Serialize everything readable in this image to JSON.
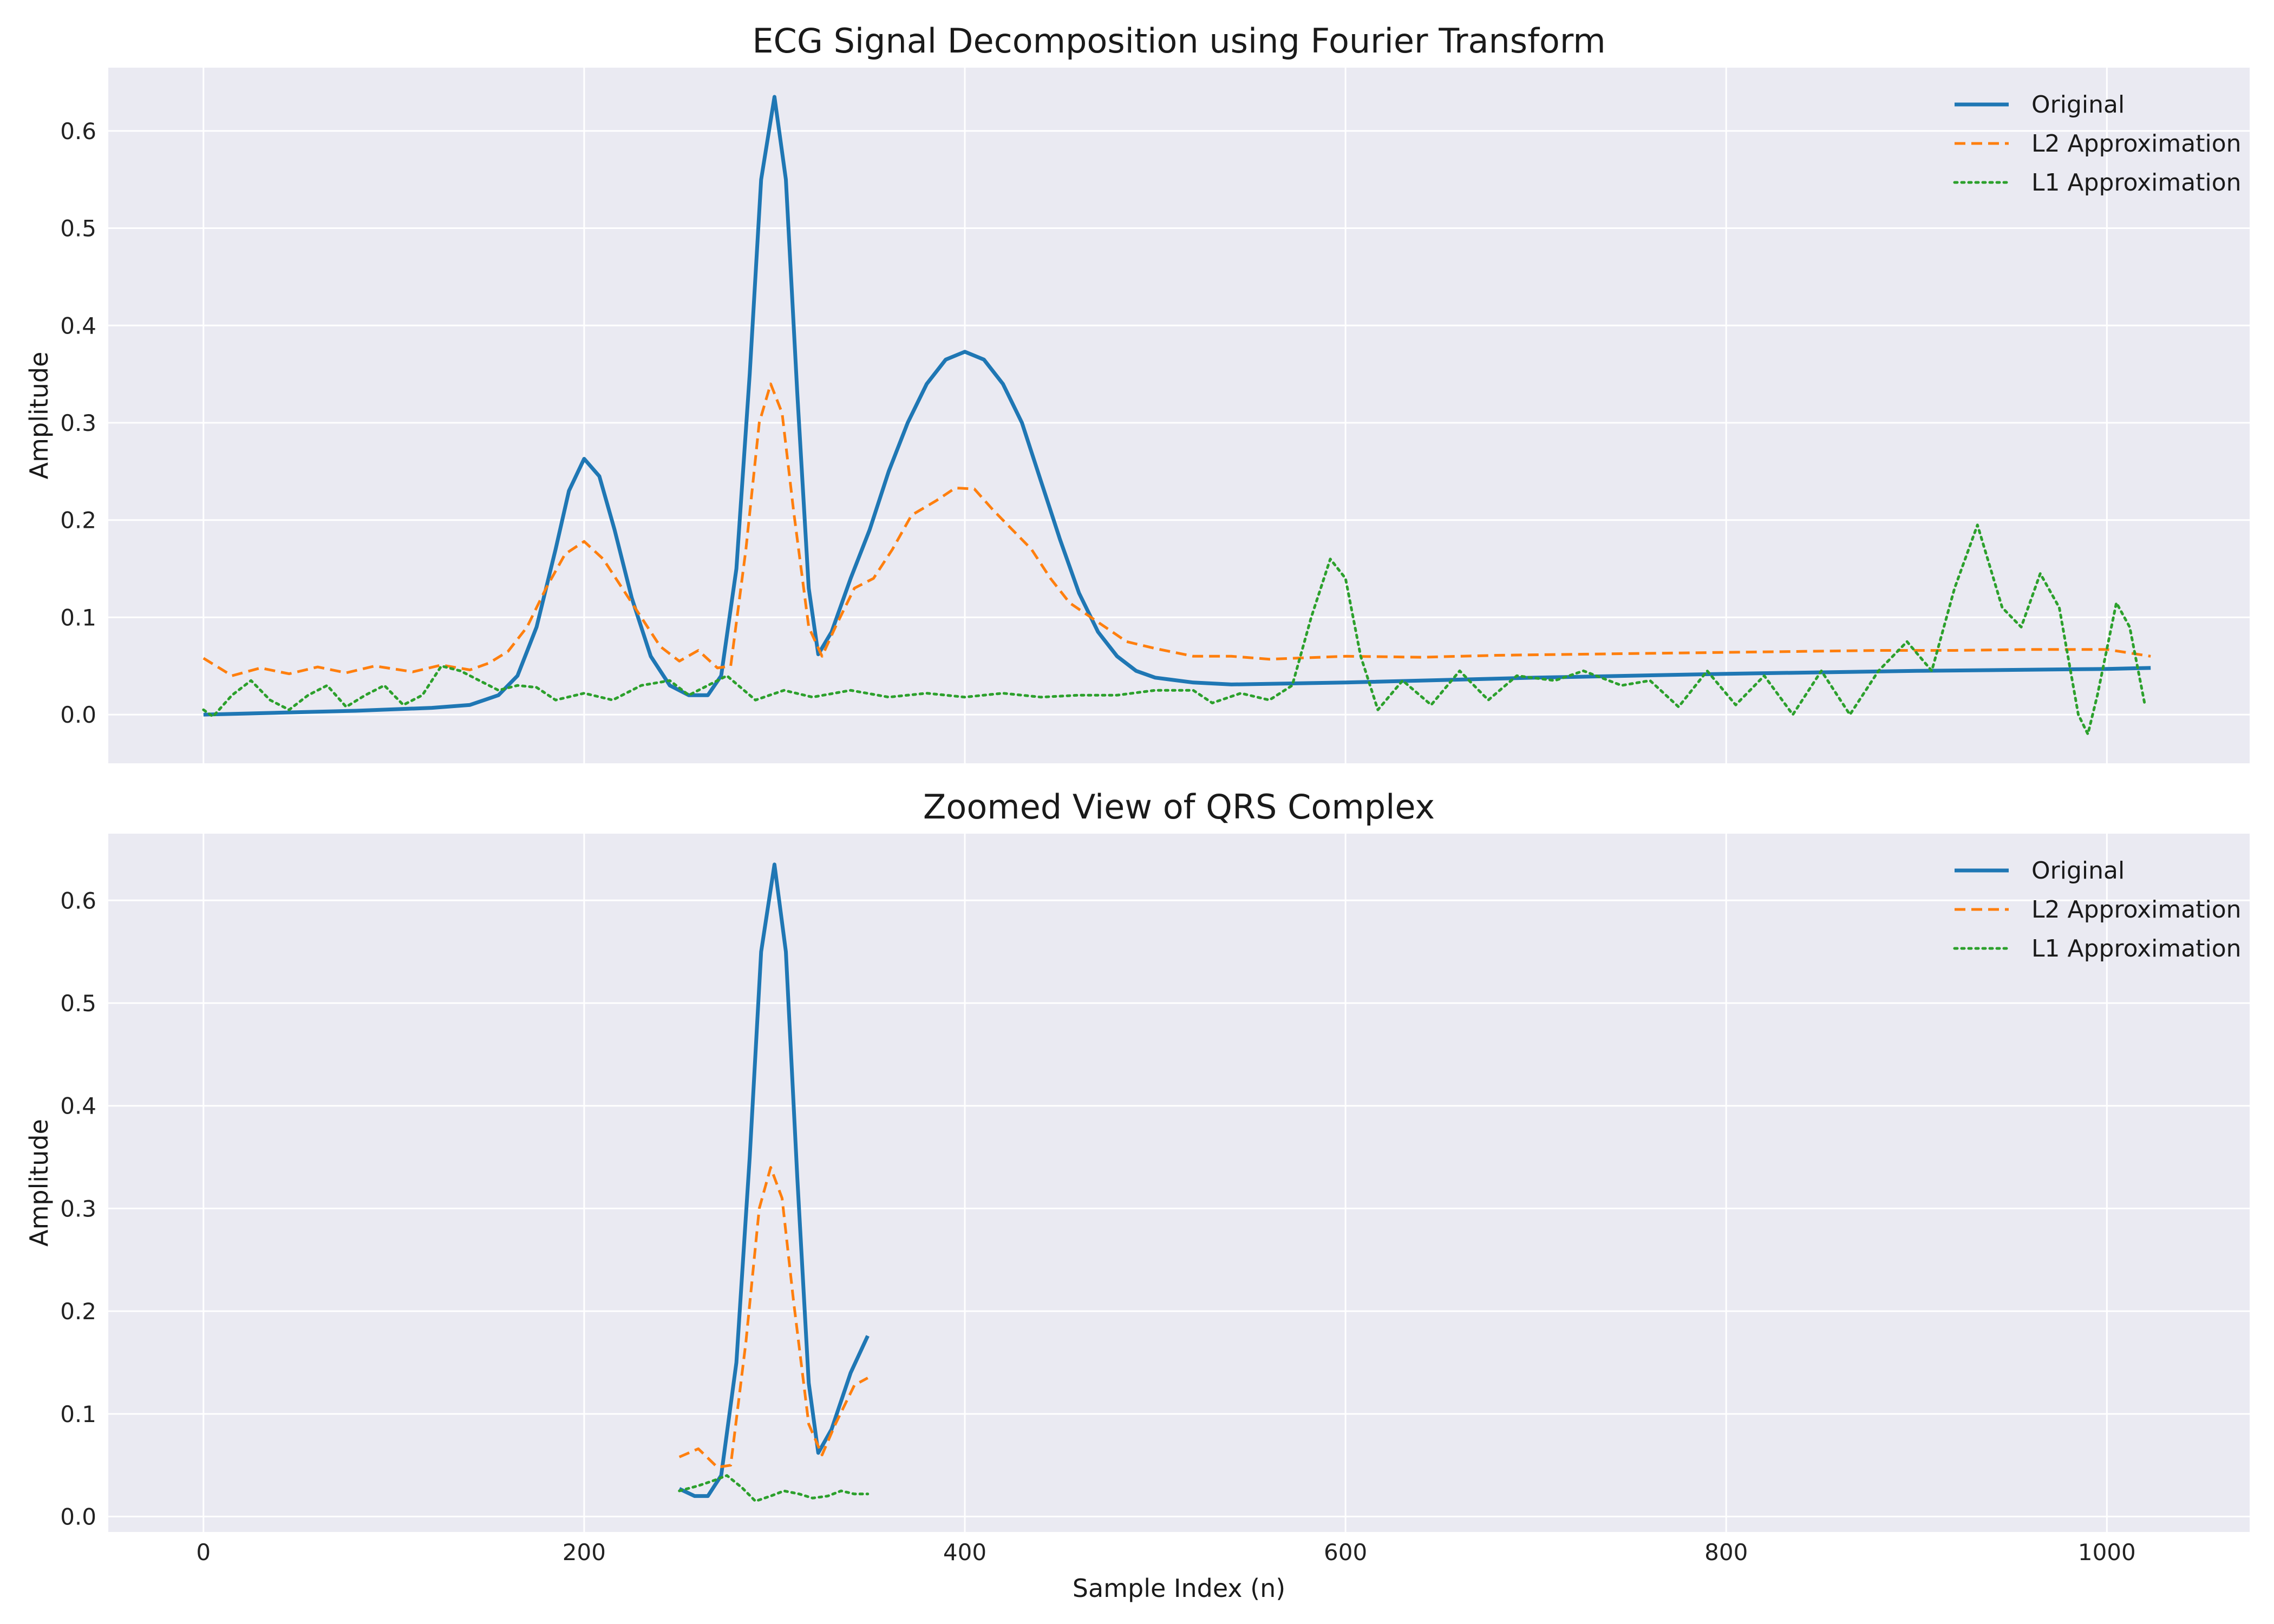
{
  "chart_data": [
    {
      "type": "line",
      "title": "ECG Signal Decomposition using Fourier Transform",
      "xlabel": "",
      "ylabel": "Amplitude",
      "xlim": [
        -50,
        1075
      ],
      "ylim": [
        -0.05,
        0.665
      ],
      "xticks": [
        0,
        200,
        400,
        600,
        800,
        1000
      ],
      "yticks": [
        0.0,
        0.1,
        0.2,
        0.3,
        0.4,
        0.5,
        0.6
      ],
      "grid": true,
      "legend": "top-right",
      "series": [
        {
          "name": "Original",
          "color": "#1f77b4",
          "style": "solid",
          "points": [
            [
              0,
              0.0
            ],
            [
              40,
              0.002
            ],
            [
              80,
              0.004
            ],
            [
              120,
              0.007
            ],
            [
              140,
              0.01
            ],
            [
              155,
              0.02
            ],
            [
              165,
              0.04
            ],
            [
              175,
              0.09
            ],
            [
              185,
              0.17
            ],
            [
              192,
              0.23
            ],
            [
              200,
              0.263
            ],
            [
              208,
              0.245
            ],
            [
              216,
              0.19
            ],
            [
              225,
              0.12
            ],
            [
              235,
              0.06
            ],
            [
              245,
              0.03
            ],
            [
              255,
              0.02
            ],
            [
              265,
              0.02
            ],
            [
              272,
              0.04
            ],
            [
              280,
              0.15
            ],
            [
              287,
              0.35
            ],
            [
              293,
              0.55
            ],
            [
              300,
              0.635
            ],
            [
              306,
              0.55
            ],
            [
              312,
              0.33
            ],
            [
              318,
              0.13
            ],
            [
              323,
              0.062
            ],
            [
              330,
              0.085
            ],
            [
              340,
              0.14
            ],
            [
              350,
              0.19
            ],
            [
              360,
              0.25
            ],
            [
              370,
              0.3
            ],
            [
              380,
              0.34
            ],
            [
              390,
              0.365
            ],
            [
              400,
              0.373
            ],
            [
              410,
              0.365
            ],
            [
              420,
              0.34
            ],
            [
              430,
              0.3
            ],
            [
              440,
              0.24
            ],
            [
              450,
              0.18
            ],
            [
              460,
              0.125
            ],
            [
              470,
              0.085
            ],
            [
              480,
              0.06
            ],
            [
              490,
              0.045
            ],
            [
              500,
              0.038
            ],
            [
              520,
              0.033
            ],
            [
              540,
              0.031
            ],
            [
              600,
              0.033
            ],
            [
              700,
              0.038
            ],
            [
              800,
              0.042
            ],
            [
              900,
              0.045
            ],
            [
              1000,
              0.047
            ],
            [
              1023,
              0.048
            ]
          ]
        },
        {
          "name": "L2 Approximation",
          "color": "#ff7f0e",
          "style": "dashed",
          "points": [
            [
              0,
              0.058
            ],
            [
              15,
              0.04
            ],
            [
              30,
              0.048
            ],
            [
              45,
              0.042
            ],
            [
              60,
              0.049
            ],
            [
              75,
              0.043
            ],
            [
              90,
              0.05
            ],
            [
              110,
              0.044
            ],
            [
              125,
              0.051
            ],
            [
              140,
              0.046
            ],
            [
              150,
              0.053
            ],
            [
              160,
              0.065
            ],
            [
              170,
              0.09
            ],
            [
              180,
              0.13
            ],
            [
              190,
              0.165
            ],
            [
              200,
              0.178
            ],
            [
              210,
              0.16
            ],
            [
              220,
              0.13
            ],
            [
              230,
              0.1
            ],
            [
              240,
              0.07
            ],
            [
              250,
              0.055
            ],
            [
              260,
              0.066
            ],
            [
              270,
              0.048
            ],
            [
              277,
              0.05
            ],
            [
              285,
              0.17
            ],
            [
              292,
              0.3
            ],
            [
              298,
              0.34
            ],
            [
              304,
              0.31
            ],
            [
              310,
              0.21
            ],
            [
              318,
              0.09
            ],
            [
              325,
              0.06
            ],
            [
              332,
              0.09
            ],
            [
              342,
              0.13
            ],
            [
              352,
              0.14
            ],
            [
              362,
              0.17
            ],
            [
              372,
              0.205
            ],
            [
              385,
              0.22
            ],
            [
              395,
              0.233
            ],
            [
              405,
              0.232
            ],
            [
              415,
              0.21
            ],
            [
              425,
              0.19
            ],
            [
              435,
              0.17
            ],
            [
              445,
              0.14
            ],
            [
              455,
              0.115
            ],
            [
              470,
              0.095
            ],
            [
              485,
              0.075
            ],
            [
              500,
              0.068
            ],
            [
              520,
              0.06
            ],
            [
              540,
              0.06
            ],
            [
              560,
              0.057
            ],
            [
              600,
              0.06
            ],
            [
              640,
              0.059
            ],
            [
              680,
              0.061
            ],
            [
              720,
              0.062
            ],
            [
              760,
              0.063
            ],
            [
              800,
              0.064
            ],
            [
              840,
              0.065
            ],
            [
              880,
              0.066
            ],
            [
              920,
              0.066
            ],
            [
              960,
              0.067
            ],
            [
              1000,
              0.067
            ],
            [
              1023,
              0.06
            ]
          ]
        },
        {
          "name": "L1 Approximation",
          "color": "#2ca02c",
          "style": "dotted",
          "points": [
            [
              0,
              0.005
            ],
            [
              5,
              -0.002
            ],
            [
              15,
              0.02
            ],
            [
              25,
              0.035
            ],
            [
              35,
              0.015
            ],
            [
              45,
              0.005
            ],
            [
              55,
              0.02
            ],
            [
              65,
              0.03
            ],
            [
              75,
              0.008
            ],
            [
              85,
              0.02
            ],
            [
              95,
              0.03
            ],
            [
              105,
              0.01
            ],
            [
              115,
              0.02
            ],
            [
              125,
              0.05
            ],
            [
              135,
              0.045
            ],
            [
              145,
              0.035
            ],
            [
              155,
              0.025
            ],
            [
              165,
              0.03
            ],
            [
              175,
              0.028
            ],
            [
              185,
              0.015
            ],
            [
              200,
              0.022
            ],
            [
              215,
              0.015
            ],
            [
              230,
              0.03
            ],
            [
              245,
              0.035
            ],
            [
              255,
              0.02
            ],
            [
              265,
              0.03
            ],
            [
              275,
              0.04
            ],
            [
              290,
              0.015
            ],
            [
              305,
              0.025
            ],
            [
              320,
              0.018
            ],
            [
              340,
              0.025
            ],
            [
              360,
              0.018
            ],
            [
              380,
              0.022
            ],
            [
              400,
              0.018
            ],
            [
              420,
              0.022
            ],
            [
              440,
              0.018
            ],
            [
              460,
              0.02
            ],
            [
              480,
              0.02
            ],
            [
              500,
              0.025
            ],
            [
              520,
              0.025
            ],
            [
              530,
              0.012
            ],
            [
              545,
              0.022
            ],
            [
              560,
              0.015
            ],
            [
              572,
              0.03
            ],
            [
              582,
              0.1
            ],
            [
              592,
              0.16
            ],
            [
              600,
              0.14
            ],
            [
              608,
              0.06
            ],
            [
              617,
              0.005
            ],
            [
              630,
              0.035
            ],
            [
              645,
              0.01
            ],
            [
              660,
              0.045
            ],
            [
              675,
              0.015
            ],
            [
              690,
              0.04
            ],
            [
              710,
              0.035
            ],
            [
              725,
              0.045
            ],
            [
              745,
              0.03
            ],
            [
              760,
              0.035
            ],
            [
              775,
              0.008
            ],
            [
              790,
              0.045
            ],
            [
              805,
              0.01
            ],
            [
              820,
              0.04
            ],
            [
              835,
              0.0
            ],
            [
              850,
              0.045
            ],
            [
              865,
              0.0
            ],
            [
              880,
              0.045
            ],
            [
              895,
              0.075
            ],
            [
              908,
              0.045
            ],
            [
              920,
              0.13
            ],
            [
              932,
              0.195
            ],
            [
              945,
              0.11
            ],
            [
              955,
              0.09
            ],
            [
              965,
              0.145
            ],
            [
              975,
              0.11
            ],
            [
              985,
              0.0
            ],
            [
              990,
              -0.02
            ],
            [
              995,
              0.02
            ],
            [
              1005,
              0.115
            ],
            [
              1012,
              0.09
            ],
            [
              1020,
              0.01
            ]
          ]
        }
      ]
    },
    {
      "type": "line",
      "title": "Zoomed View of QRS Complex",
      "xlabel": "Sample Index (n)",
      "ylabel": "Amplitude",
      "xlim": [
        -50,
        1075
      ],
      "ylim": [
        -0.015,
        0.665
      ],
      "xticks": [
        0,
        200,
        400,
        600,
        800,
        1000
      ],
      "yticks": [
        0.0,
        0.1,
        0.2,
        0.3,
        0.4,
        0.5,
        0.6
      ],
      "grid": true,
      "legend": "top-right",
      "series": [
        {
          "name": "Original",
          "color": "#1f77b4",
          "style": "solid",
          "points": [
            [
              250,
              0.027
            ],
            [
              258,
              0.02
            ],
            [
              265,
              0.02
            ],
            [
              272,
              0.04
            ],
            [
              280,
              0.15
            ],
            [
              287,
              0.35
            ],
            [
              293,
              0.55
            ],
            [
              300,
              0.635
            ],
            [
              306,
              0.55
            ],
            [
              312,
              0.33
            ],
            [
              318,
              0.13
            ],
            [
              323,
              0.062
            ],
            [
              330,
              0.085
            ],
            [
              340,
              0.14
            ],
            [
              349,
              0.176
            ]
          ]
        },
        {
          "name": "L2 Approximation",
          "color": "#ff7f0e",
          "style": "dashed",
          "points": [
            [
              250,
              0.058
            ],
            [
              260,
              0.066
            ],
            [
              270,
              0.048
            ],
            [
              277,
              0.05
            ],
            [
              285,
              0.17
            ],
            [
              292,
              0.3
            ],
            [
              298,
              0.34
            ],
            [
              304,
              0.31
            ],
            [
              310,
              0.21
            ],
            [
              318,
              0.09
            ],
            [
              325,
              0.06
            ],
            [
              332,
              0.09
            ],
            [
              342,
              0.128
            ],
            [
              349,
              0.135
            ]
          ]
        },
        {
          "name": "L1 Approximation",
          "color": "#2ca02c",
          "style": "dotted",
          "points": [
            [
              250,
              0.025
            ],
            [
              260,
              0.03
            ],
            [
              268,
              0.035
            ],
            [
              275,
              0.04
            ],
            [
              283,
              0.028
            ],
            [
              290,
              0.015
            ],
            [
              298,
              0.02
            ],
            [
              305,
              0.025
            ],
            [
              313,
              0.022
            ],
            [
              320,
              0.018
            ],
            [
              328,
              0.02
            ],
            [
              335,
              0.025
            ],
            [
              342,
              0.022
            ],
            [
              349,
              0.022
            ]
          ]
        }
      ]
    }
  ]
}
